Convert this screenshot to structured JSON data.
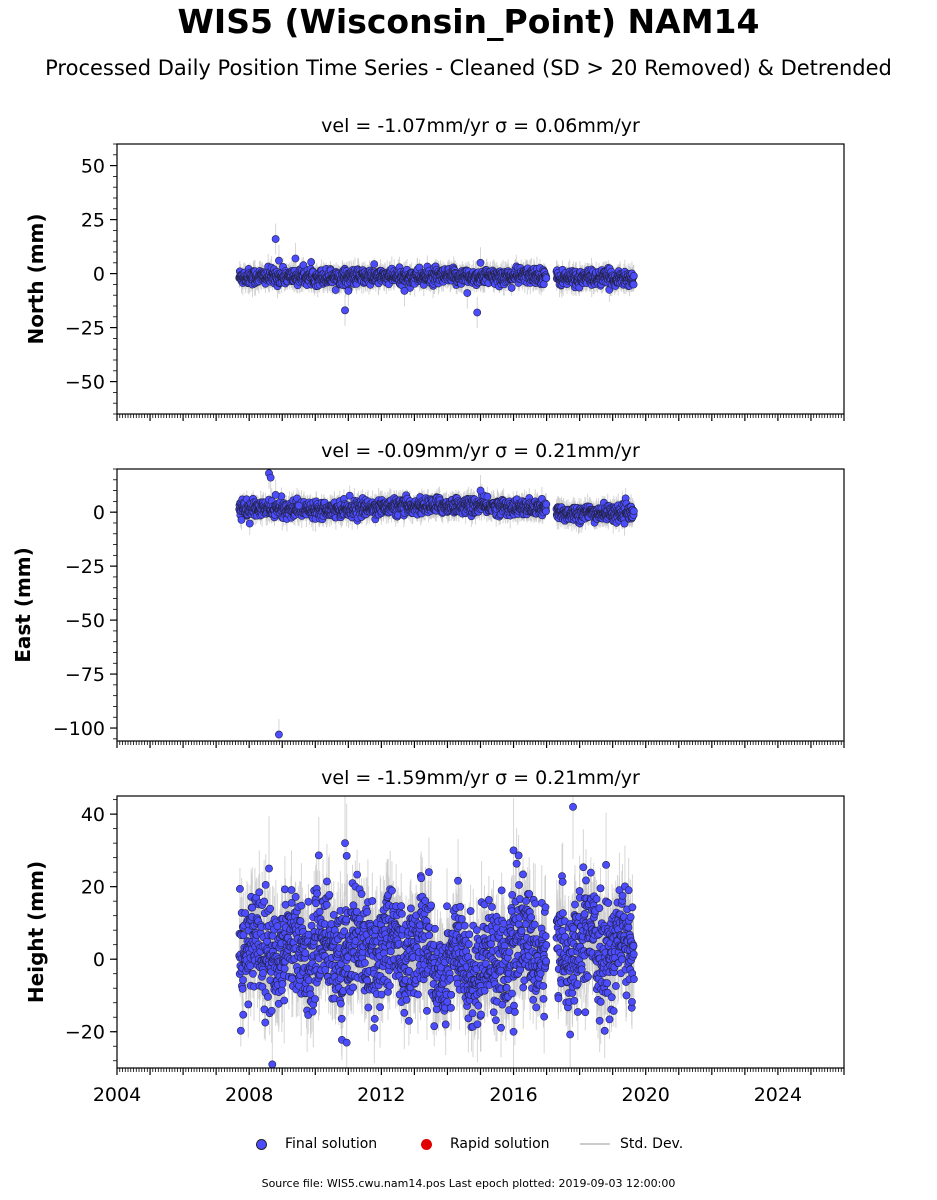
{
  "title": "WIS5 (Wisconsin_Point) NAM14",
  "subtitle": "Processed Daily Position Time Series - Cleaned (SD > 20 Removed) & Detrended",
  "legend": {
    "final": "Final solution",
    "rapid": "Rapid solution",
    "std": "Std. Dev."
  },
  "footer": "Source file: WIS5.cwu.nam14.pos  Last epoch plotted: 2019-09-03 12:00:00",
  "colors": {
    "final": "#4c4cff",
    "rapid": "#e00000",
    "std": "#c8c8c8",
    "marker_edge": "#222244"
  },
  "chart_data": [
    {
      "type": "scatter",
      "title": "vel = -1.07mm/yr   σ = 0.06mm/yr",
      "ylabel": "North (mm)",
      "xlim": [
        2004,
        2026
      ],
      "ylim": [
        -65,
        60
      ],
      "yticks": [
        50,
        25,
        0,
        -25,
        -50
      ],
      "ytick_labels": [
        "50",
        "25",
        "0",
        "−25",
        "−50"
      ],
      "x_range_data": [
        [
          2007.7,
          2017.0
        ],
        [
          2017.3,
          2019.65
        ]
      ],
      "band": {
        "center": -1.5,
        "spread": 1.8,
        "error": 4
      },
      "outliers": [
        [
          2008.8,
          16
        ],
        [
          2009.4,
          7
        ],
        [
          2010.9,
          -17
        ],
        [
          2011.0,
          -8
        ],
        [
          2012.7,
          -8
        ],
        [
          2014.6,
          -9
        ],
        [
          2014.9,
          -18
        ],
        [
          2015.0,
          5
        ],
        [
          2008.9,
          6
        ]
      ]
    },
    {
      "type": "scatter",
      "title": "vel = -0.09mm/yr   σ = 0.21mm/yr",
      "ylabel": "East (mm)",
      "xlim": [
        2004,
        2026
      ],
      "ylim": [
        -106,
        20
      ],
      "yticks": [
        0,
        -25,
        -50,
        -75,
        -100
      ],
      "ytick_labels": [
        "0",
        "−25",
        "−50",
        "−75",
        "−100"
      ],
      "x_range_data": [
        [
          2007.7,
          2017.0
        ],
        [
          2017.3,
          2019.65
        ]
      ],
      "band": {
        "center": 1.5,
        "spread": 1.8,
        "error": 4
      },
      "outliers": [
        [
          2008.6,
          18
        ],
        [
          2008.65,
          16
        ],
        [
          2008.8,
          8
        ],
        [
          2008.9,
          -103
        ],
        [
          2015.0,
          10
        ],
        [
          2009.5,
          3
        ]
      ]
    },
    {
      "type": "scatter",
      "title": "vel = -1.59mm/yr   σ = 0.21mm/yr",
      "ylabel": "Height (mm)",
      "xlim": [
        2004,
        2026
      ],
      "ylim": [
        -30,
        45
      ],
      "yticks": [
        40,
        20,
        0,
        -20
      ],
      "ytick_labels": [
        "40",
        "20",
        "0",
        "−20"
      ],
      "xticks": [
        2004,
        2008,
        2012,
        2016,
        2020,
        2024
      ],
      "xtick_labels": [
        "2004",
        "2008",
        "2012",
        "2016",
        "2020",
        "2024"
      ],
      "x_range_data": [
        [
          2007.7,
          2017.0
        ],
        [
          2017.3,
          2019.65
        ]
      ],
      "band": {
        "center": 3,
        "spread": 7,
        "error": 8
      },
      "outliers": [
        [
          2017.8,
          42
        ],
        [
          2008.7,
          -29
        ],
        [
          2010.9,
          32
        ],
        [
          2010.95,
          28.5
        ],
        [
          2008.6,
          25
        ],
        [
          2016.0,
          30
        ],
        [
          2010.95,
          -23
        ],
        [
          2016.0,
          -20
        ],
        [
          2018.8,
          26
        ]
      ]
    }
  ]
}
